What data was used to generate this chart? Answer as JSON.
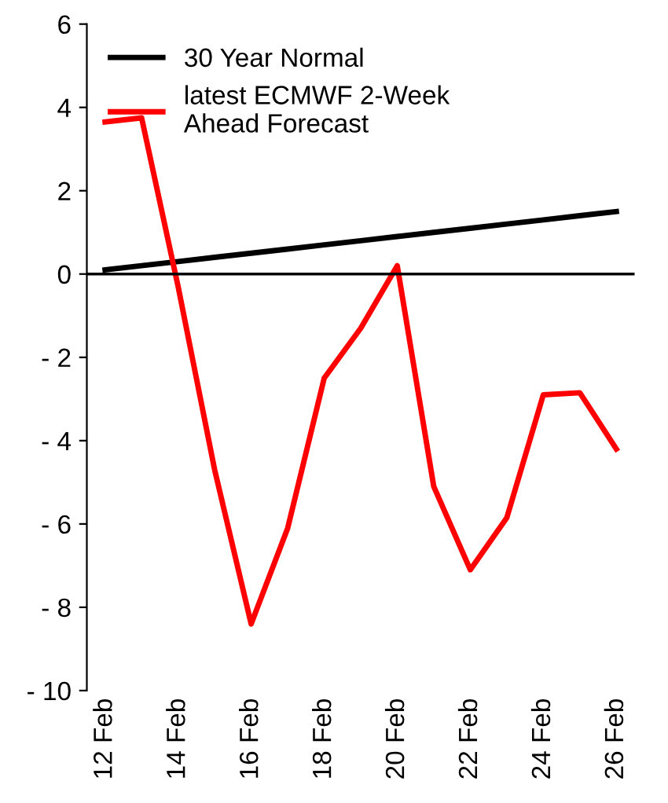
{
  "chart_data": {
    "type": "line",
    "categories": [
      "12 Feb",
      null,
      "14 Feb",
      null,
      "16 Feb",
      null,
      "18 Feb",
      null,
      "20 Feb",
      null,
      "22 Feb",
      null,
      "24 Feb",
      null,
      "26 Feb"
    ],
    "series": [
      {
        "name": "30 Year Normal",
        "color": "#000000",
        "values": [
          0.1,
          0.2,
          0.3,
          0.4,
          0.5,
          0.6,
          0.7,
          0.8,
          0.9,
          1.0,
          1.1,
          1.2,
          1.3,
          1.4,
          1.5
        ]
      },
      {
        "name": "latest ECMWF 2-Week\nAhead Forecast",
        "color": "#ff0000",
        "values": [
          3.65,
          3.75,
          -0.3,
          -4.7,
          -8.4,
          -6.1,
          -2.5,
          -1.3,
          0.2,
          -5.1,
          -7.1,
          -5.85,
          -2.9,
          -2.85,
          -4.2
        ]
      }
    ],
    "ylim": [
      -10,
      6
    ],
    "yticks": [
      {
        "value": -10,
        "label": "- 10"
      },
      {
        "value": -8,
        "label": "- 8"
      },
      {
        "value": -6,
        "label": "- 6"
      },
      {
        "value": -4,
        "label": "- 4"
      },
      {
        "value": -2,
        "label": "- 2"
      },
      0,
      2,
      4,
      6
    ],
    "ref_lines": [
      {
        "axis": "y",
        "value": 0,
        "color": "#000000"
      }
    ],
    "grid": false,
    "legend": "top left",
    "marker": "none",
    "line_style": "solid"
  }
}
